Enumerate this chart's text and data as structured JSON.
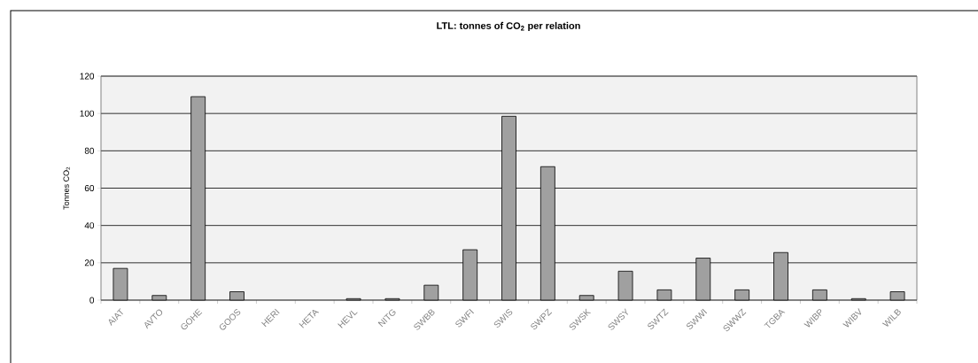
{
  "chart_data": {
    "type": "bar",
    "title": "LTL: tonnes of CO$_{2}$ per relation",
    "ylabel": "Tonnes CO$_{2}$",
    "categories": [
      "AIAT",
      "AVTO",
      "GOHE",
      "GOOS",
      "HERI",
      "HETA",
      "HEVL",
      "NITG",
      "SWBB",
      "SWFI",
      "SWIS",
      "SWPZ",
      "SWSK",
      "SWSY",
      "SWTZ",
      "SWWI",
      "SWWZ",
      "TGBA",
      "WIBP",
      "WIBV",
      "WILB"
    ],
    "values": [
      17,
      2.5,
      109,
      4.5,
      0,
      0,
      0.8,
      0.8,
      8,
      27,
      98.5,
      71.5,
      2.5,
      15.5,
      5.5,
      22.5,
      5.5,
      25.5,
      5.5,
      0.8,
      4.5
    ],
    "color": "#a0a0a0",
    "ylim": [
      0,
      120
    ],
    "yticks": [
      0,
      20,
      40,
      60,
      80,
      100,
      120
    ],
    "grid": "y"
  }
}
